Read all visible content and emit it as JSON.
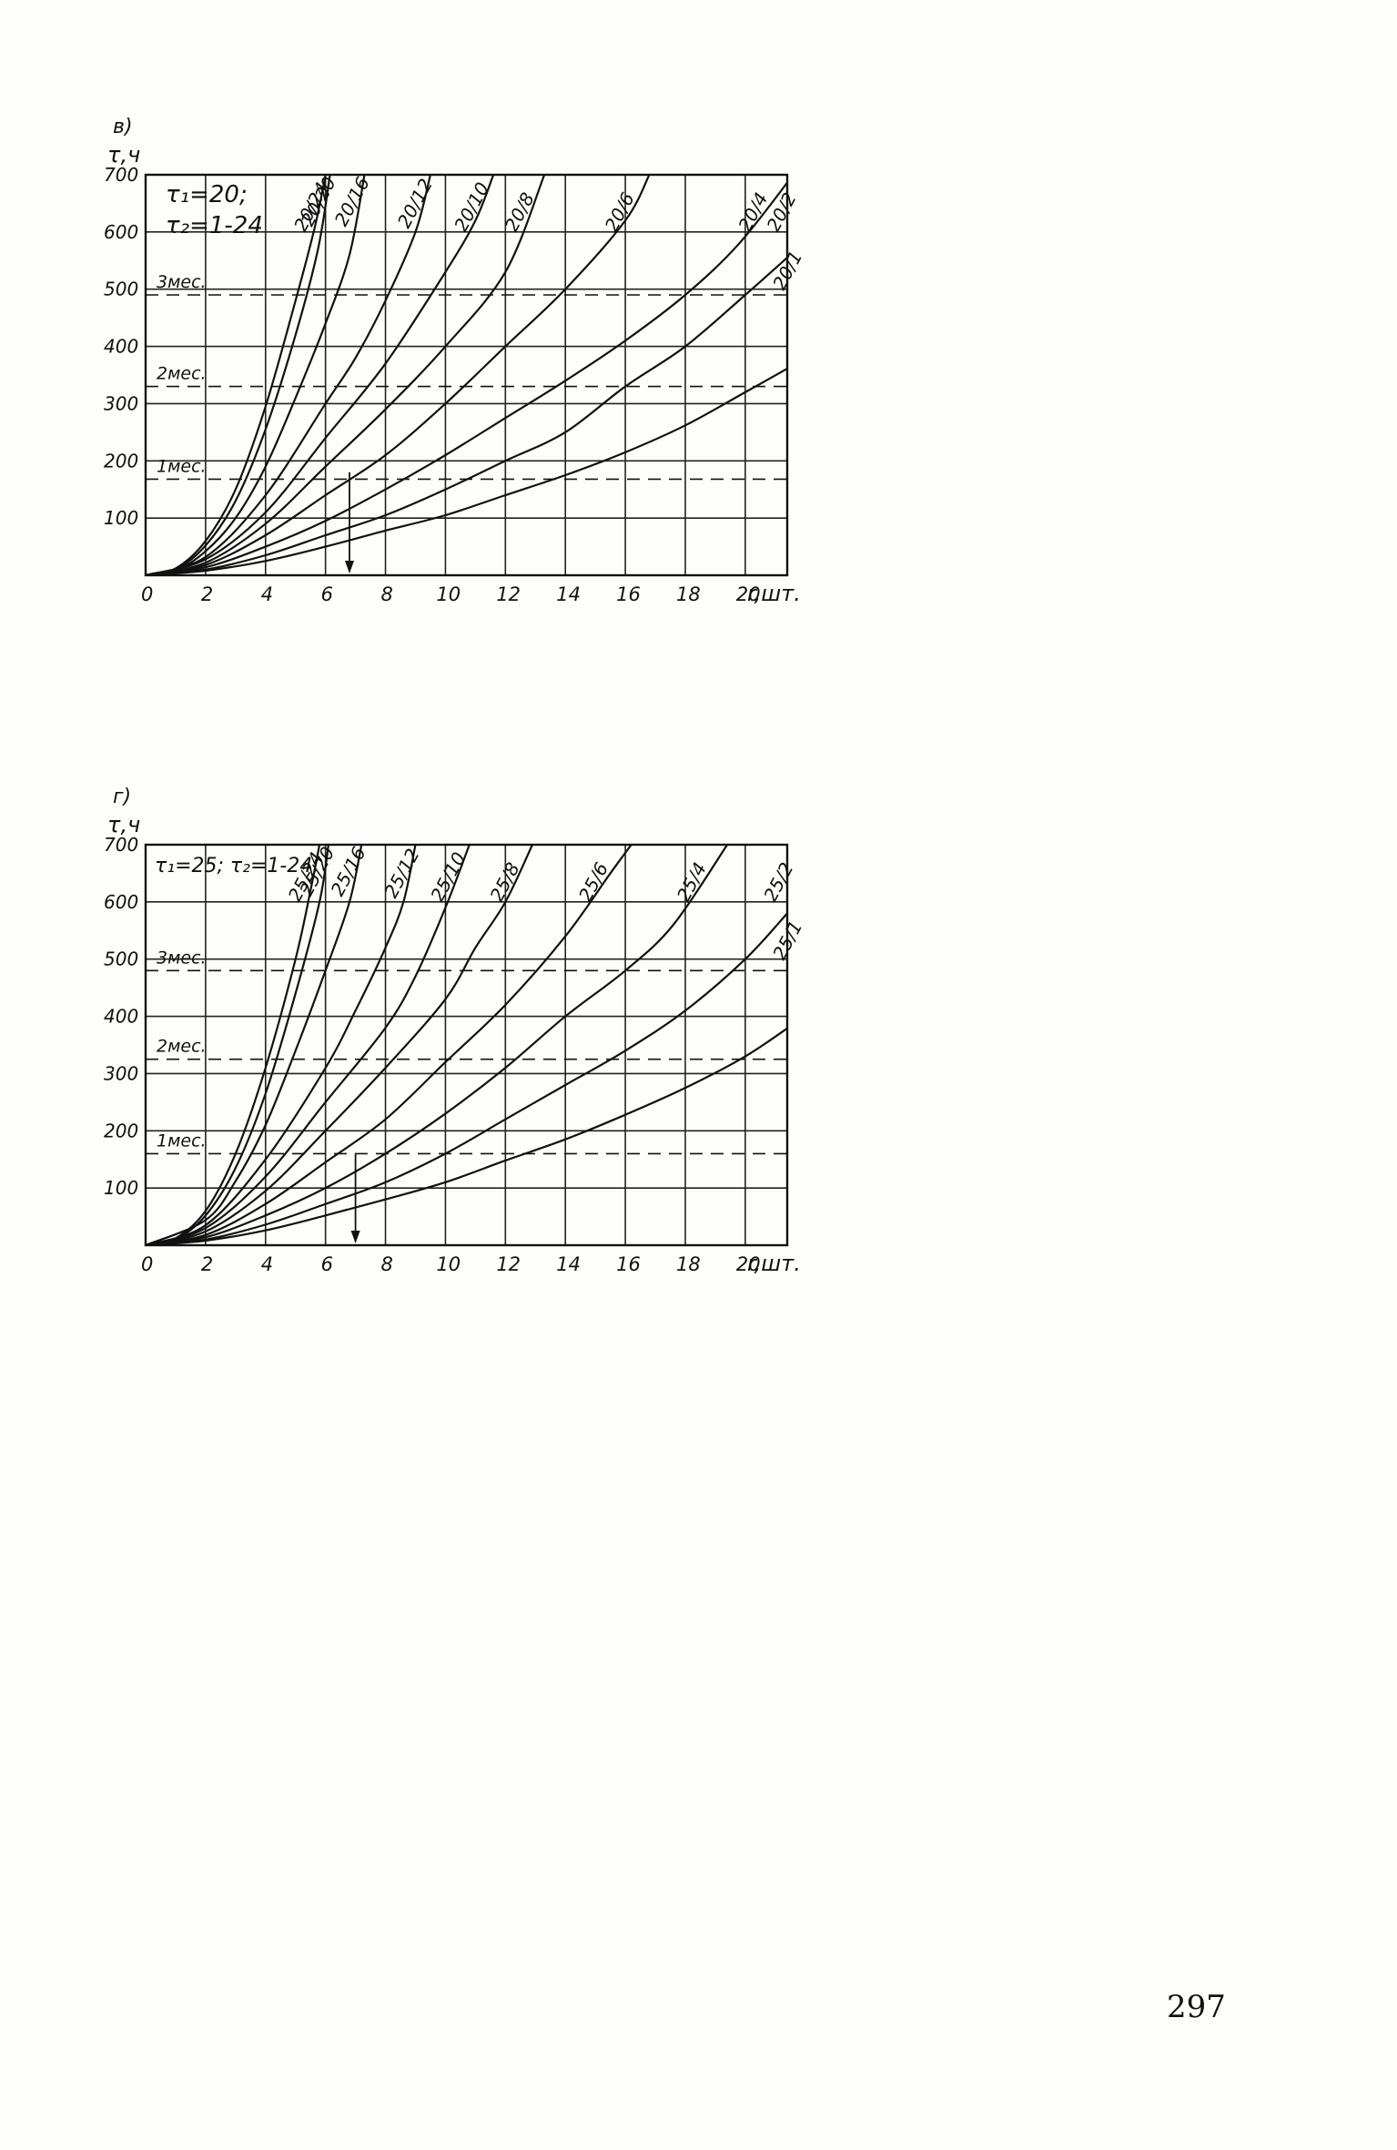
{
  "page_number": "297",
  "chart_data": [
    {
      "type": "line",
      "panel_label": "в)",
      "ylabel": "τ,ч",
      "xlabel": "r,шт.",
      "param_lines": [
        "τ₁=20;",
        "τ₂=1-24"
      ],
      "xlim": [
        0,
        21
      ],
      "ylim": [
        0,
        700
      ],
      "x_ticks": [
        "0",
        "2",
        "4",
        "6",
        "8",
        "10",
        "12",
        "14",
        "16",
        "18",
        "20"
      ],
      "y_ticks": [
        "100",
        "200",
        "300",
        "400",
        "500",
        "600",
        "700"
      ],
      "grid": true,
      "reference_lines": [
        {
          "label": "1мес.",
          "y": 168
        },
        {
          "label": "2мес.",
          "y": 330
        },
        {
          "label": "3мес.",
          "y": 490
        }
      ],
      "marker_arrow": {
        "x": 6.8,
        "from_y": 180,
        "to_y": 0
      },
      "series": [
        {
          "name": "20/24",
          "points": [
            [
              0,
              0
            ],
            [
              1,
              12
            ],
            [
              2,
              60
            ],
            [
              3,
              150
            ],
            [
              4,
              295
            ],
            [
              5,
              480
            ],
            [
              5.65,
              610
            ],
            [
              6.0,
              700
            ]
          ]
        },
        {
          "name": "20/20",
          "points": [
            [
              0,
              0
            ],
            [
              1,
              10
            ],
            [
              2,
              52
            ],
            [
              3,
              130
            ],
            [
              4,
              255
            ],
            [
              5,
              420
            ],
            [
              5.75,
              570
            ],
            [
              6.15,
              700
            ]
          ]
        },
        {
          "name": "20/16",
          "points": [
            [
              0,
              0
            ],
            [
              1,
              8
            ],
            [
              2,
              42
            ],
            [
              3,
              100
            ],
            [
              4,
              190
            ],
            [
              5,
              310
            ],
            [
              6,
              440
            ],
            [
              6.8,
              560
            ],
            [
              7.3,
              700
            ]
          ]
        },
        {
          "name": "20/12",
          "points": [
            [
              0,
              0
            ],
            [
              2,
              32
            ],
            [
              4,
              140
            ],
            [
              6,
              300
            ],
            [
              7,
              380
            ],
            [
              8,
              480
            ],
            [
              9,
              600
            ],
            [
              9.5,
              700
            ]
          ]
        },
        {
          "name": "20/10",
          "points": [
            [
              0,
              0
            ],
            [
              2,
              28
            ],
            [
              4,
              110
            ],
            [
              6,
              240
            ],
            [
              8,
              370
            ],
            [
              10,
              530
            ],
            [
              11,
              620
            ],
            [
              11.6,
              700
            ]
          ]
        },
        {
          "name": "20/8",
          "points": [
            [
              0,
              0
            ],
            [
              2,
              22
            ],
            [
              4,
              90
            ],
            [
              6,
              190
            ],
            [
              8,
              290
            ],
            [
              10,
              400
            ],
            [
              12,
              530
            ],
            [
              13.3,
              700
            ]
          ]
        },
        {
          "name": "20/6",
          "points": [
            [
              0,
              0
            ],
            [
              2,
              18
            ],
            [
              4,
              70
            ],
            [
              6,
              140
            ],
            [
              8,
              210
            ],
            [
              10,
              300
            ],
            [
              12,
              400
            ],
            [
              14,
              500
            ],
            [
              16,
              620
            ],
            [
              16.8,
              700
            ]
          ]
        },
        {
          "name": "20/4",
          "points": [
            [
              0,
              0
            ],
            [
              2,
              14
            ],
            [
              4,
              50
            ],
            [
              6,
              95
            ],
            [
              8,
              150
            ],
            [
              10,
              210
            ],
            [
              12,
              275
            ],
            [
              14,
              340
            ],
            [
              16,
              410
            ],
            [
              18,
              490
            ],
            [
              19.8,
              580
            ],
            [
              21.6,
              700
            ]
          ]
        },
        {
          "name": "20/2",
          "points": [
            [
              0,
              0
            ],
            [
              2,
              10
            ],
            [
              4,
              35
            ],
            [
              6,
              70
            ],
            [
              8,
              105
            ],
            [
              10,
              150
            ],
            [
              12,
              200
            ],
            [
              14,
              250
            ],
            [
              16,
              330
            ],
            [
              18,
              400
            ],
            [
              20,
              490
            ],
            [
              21.5,
              560
            ]
          ]
        },
        {
          "name": "20/1",
          "points": [
            [
              0,
              0
            ],
            [
              2,
              8
            ],
            [
              4,
              25
            ],
            [
              6,
              50
            ],
            [
              8,
              78
            ],
            [
              10,
              105
            ],
            [
              12,
              140
            ],
            [
              14,
              175
            ],
            [
              16,
              215
            ],
            [
              18,
              262
            ],
            [
              20,
              320
            ],
            [
              21.7,
              370
            ]
          ]
        }
      ]
    },
    {
      "type": "line",
      "panel_label": "г)",
      "ylabel": "τ,ч",
      "xlabel": "r,шт.",
      "param_lines": [
        "τ₁=25; τ₂=1-24"
      ],
      "xlim": [
        0,
        21
      ],
      "ylim": [
        0,
        700
      ],
      "x_ticks": [
        "0",
        "2",
        "4",
        "6",
        "8",
        "10",
        "12",
        "14",
        "16",
        "18",
        "20"
      ],
      "y_ticks": [
        "100",
        "200",
        "300",
        "400",
        "500",
        "600",
        "700"
      ],
      "grid": true,
      "reference_lines": [
        {
          "label": "1мес.",
          "y": 160
        },
        {
          "label": "2мес.",
          "y": 325
        },
        {
          "label": "3мес.",
          "y": 480
        }
      ],
      "marker_arrow": {
        "x": 7.0,
        "from_y": 160,
        "to_y": 0
      },
      "series": [
        {
          "name": "25/24",
          "points": [
            [
              0,
              0
            ],
            [
              1,
              12
            ],
            [
              2,
              60
            ],
            [
              3,
              160
            ],
            [
              4,
              310
            ],
            [
              5,
              500
            ],
            [
              5.5,
              620
            ],
            [
              5.8,
              700
            ]
          ]
        },
        {
          "name": "25/20",
          "points": [
            [
              0,
              0
            ],
            [
              1,
              10
            ],
            [
              2,
              52
            ],
            [
              3,
              135
            ],
            [
              4,
              265
            ],
            [
              5,
              440
            ],
            [
              5.8,
              600
            ],
            [
              6.1,
              700
            ]
          ]
        },
        {
          "name": "25/16",
          "points": [
            [
              0,
              0
            ],
            [
              2,
              44
            ],
            [
              3,
              112
            ],
            [
              4,
              210
            ],
            [
              5,
              340
            ],
            [
              6,
              480
            ],
            [
              6.8,
              600
            ],
            [
              7.2,
              700
            ]
          ]
        },
        {
          "name": "25/12",
          "points": [
            [
              0,
              0
            ],
            [
              2,
              35
            ],
            [
              4,
              150
            ],
            [
              6,
              310
            ],
            [
              7,
              410
            ],
            [
              8,
              520
            ],
            [
              8.6,
              600
            ],
            [
              9.0,
              700
            ]
          ]
        },
        {
          "name": "25/10",
          "points": [
            [
              0,
              0
            ],
            [
              2,
              30
            ],
            [
              4,
              120
            ],
            [
              6,
              250
            ],
            [
              8,
              380
            ],
            [
              9,
              470
            ],
            [
              10,
              590
            ],
            [
              10.8,
              700
            ]
          ]
        },
        {
          "name": "25/8",
          "points": [
            [
              0,
              0
            ],
            [
              2,
              24
            ],
            [
              4,
              95
            ],
            [
              6,
              200
            ],
            [
              8,
              310
            ],
            [
              10,
              430
            ],
            [
              11,
              520
            ],
            [
              12.0,
              600
            ],
            [
              12.9,
              700
            ]
          ]
        },
        {
          "name": "25/6",
          "points": [
            [
              0,
              0
            ],
            [
              2,
              18
            ],
            [
              4,
              72
            ],
            [
              6,
              145
            ],
            [
              8,
              220
            ],
            [
              10,
              320
            ],
            [
              12,
              420
            ],
            [
              14,
              540
            ],
            [
              15.5,
              650
            ],
            [
              16.2,
              700
            ]
          ]
        },
        {
          "name": "25/4",
          "points": [
            [
              0,
              0
            ],
            [
              2,
              14
            ],
            [
              4,
              52
            ],
            [
              6,
              100
            ],
            [
              8,
              160
            ],
            [
              10,
              230
            ],
            [
              12,
              310
            ],
            [
              14,
              400
            ],
            [
              16,
              480
            ],
            [
              17.6,
              560
            ],
            [
              19.4,
              700
            ]
          ]
        },
        {
          "name": "25/2",
          "points": [
            [
              0,
              0
            ],
            [
              2,
              10
            ],
            [
              4,
              36
            ],
            [
              6,
              72
            ],
            [
              8,
              110
            ],
            [
              10,
              160
            ],
            [
              12,
              220
            ],
            [
              14,
              280
            ],
            [
              16,
              340
            ],
            [
              18,
              410
            ],
            [
              20,
              500
            ],
            [
              21.4,
              580
            ]
          ]
        },
        {
          "name": "25/1",
          "points": [
            [
              0,
              0
            ],
            [
              2,
              8
            ],
            [
              4,
              26
            ],
            [
              6,
              52
            ],
            [
              8,
              80
            ],
            [
              10,
              110
            ],
            [
              12,
              148
            ],
            [
              14,
              185
            ],
            [
              16,
              228
            ],
            [
              18,
              275
            ],
            [
              20,
              330
            ],
            [
              21.7,
              390
            ]
          ]
        }
      ]
    }
  ]
}
